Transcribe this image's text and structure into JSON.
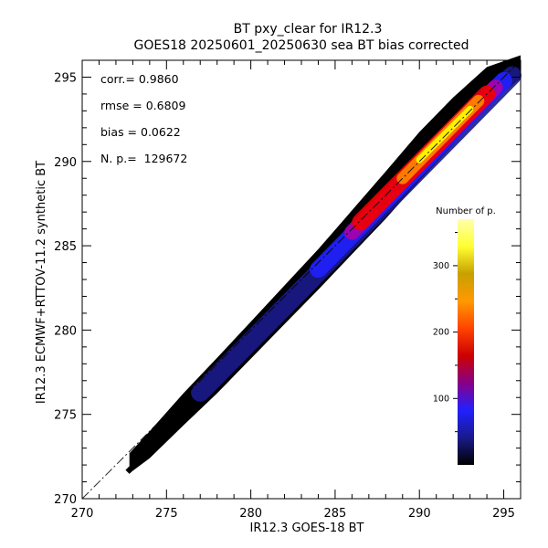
{
  "chart_data": {
    "type": "heatmap",
    "title": "BT pxy_clear for IR12.3",
    "subtitle": "GOES18 20250601_20250630 sea BT bias corrected",
    "xlabel": "IR12.3 GOES-18 BT",
    "ylabel": "IR12.3 ECMWF+RTTOV-11.2 synthetic BT",
    "xlim": [
      270,
      296
    ],
    "ylim": [
      270,
      296
    ],
    "xticks": [
      270,
      275,
      280,
      285,
      290,
      295
    ],
    "yticks": [
      270,
      275,
      280,
      285,
      290,
      295
    ],
    "stats": [
      {
        "label": "corr.= 0.9860"
      },
      {
        "label": "rmse = 0.6809"
      },
      {
        "label": "bias = 0.0622"
      },
      {
        "label": "N. p.=  129672"
      }
    ],
    "reference_line": {
      "style": "dash-dot",
      "from": [
        270,
        270
      ],
      "to": [
        296,
        296
      ]
    },
    "density_band": {
      "centerline": [
        [
          272.8,
          272.1
        ],
        [
          274,
          273.2
        ],
        [
          276,
          275.3
        ],
        [
          278,
          277.3
        ],
        [
          280,
          279.4
        ],
        [
          282,
          281.5
        ],
        [
          284,
          283.6
        ],
        [
          286,
          285.8
        ],
        [
          288,
          288.0
        ],
        [
          290,
          290.3
        ],
        [
          292,
          292.4
        ],
        [
          294,
          294.5
        ],
        [
          296,
          295.6
        ]
      ],
      "halfwidth": [
        0.6,
        0.8,
        0.95,
        1.05,
        1.1,
        1.15,
        1.2,
        1.3,
        1.4,
        1.45,
        1.4,
        1.1,
        0.7
      ],
      "core": [
        {
          "color": "#1a1a8c",
          "from": [
            277,
            276.3
          ],
          "to": [
            295.5,
            295.1
          ],
          "halfwidth": 0.55
        },
        {
          "color": "#2020ff",
          "from": [
            284,
            283.6
          ],
          "to": [
            295,
            294.8
          ],
          "halfwidth": 0.5
        },
        {
          "color": "#aa00aa",
          "from": [
            286,
            285.8
          ],
          "to": [
            294.5,
            294.4
          ],
          "halfwidth": 0.45
        },
        {
          "color": "#ee0000",
          "from": [
            286.5,
            286.4
          ],
          "to": [
            294,
            294.0
          ],
          "halfwidth": 0.5
        },
        {
          "color": "#ff8800",
          "from": [
            289,
            289.0
          ],
          "to": [
            293.5,
            293.6
          ],
          "halfwidth": 0.35
        },
        {
          "color": "#ffff00",
          "from": [
            290,
            290.1
          ],
          "to": [
            293,
            293.1
          ],
          "halfwidth": 0.2
        }
      ],
      "outlier": [
        272.8,
        271.7
      ]
    },
    "colorbar": {
      "title": "Number of p.",
      "range": [
        0,
        370
      ],
      "ticks": [
        100,
        200,
        300
      ],
      "colors": [
        "#000000",
        "#1a1a8c",
        "#2020ff",
        "#880088",
        "#cc0000",
        "#ff4400",
        "#ff9900",
        "#c8a000",
        "#ffff33",
        "#ffffaa"
      ]
    }
  }
}
